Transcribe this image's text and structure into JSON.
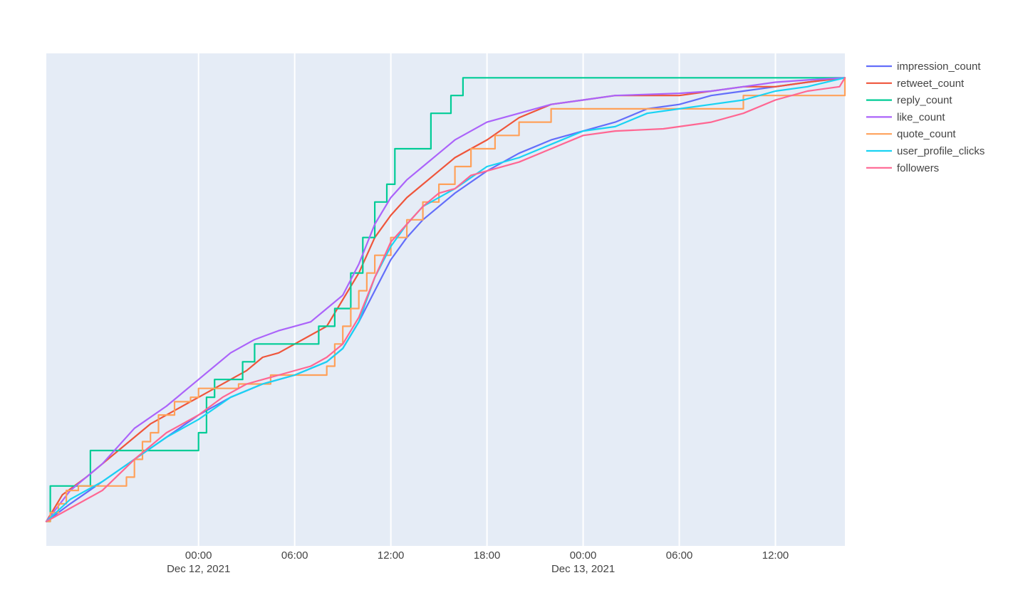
{
  "chart_data": {
    "type": "line",
    "title": "",
    "xlabel": "",
    "ylabel": "",
    "x_axis_type": "date",
    "xlim": [
      "2021-12-11 14:30",
      "2021-12-13 16:20"
    ],
    "ylim": [
      -0.055,
      1.055
    ],
    "grid": "vertical gridlines only",
    "plot_background": "#e5ecf6",
    "legend_position": "top-right",
    "x_ticks": [
      {
        "at": "2021-12-12 00:00",
        "time": "00:00",
        "date": "Dec 12, 2021"
      },
      {
        "at": "2021-12-12 06:00",
        "time": "06:00",
        "date": ""
      },
      {
        "at": "2021-12-12 12:00",
        "time": "12:00",
        "date": ""
      },
      {
        "at": "2021-12-12 18:00",
        "time": "18:00",
        "date": ""
      },
      {
        "at": "2021-12-13 00:00",
        "time": "00:00",
        "date": "Dec 13, 2021"
      },
      {
        "at": "2021-12-13 06:00",
        "time": "06:00",
        "date": ""
      },
      {
        "at": "2021-12-13 12:00",
        "time": "12:00",
        "date": ""
      }
    ],
    "series": [
      {
        "name": "impression_count",
        "color": "#636efa",
        "shape": "linear",
        "points": [
          [
            "2021-12-11 14:30",
            0
          ],
          [
            "2021-12-11 16:00",
            0.04
          ],
          [
            "2021-12-11 18:00",
            0.09
          ],
          [
            "2021-12-11 20:00",
            0.14
          ],
          [
            "2021-12-11 22:00",
            0.19
          ],
          [
            "2021-12-12 00:00",
            0.24
          ],
          [
            "2021-12-12 02:00",
            0.28
          ],
          [
            "2021-12-12 04:00",
            0.31
          ],
          [
            "2021-12-12 06:00",
            0.33
          ],
          [
            "2021-12-12 08:00",
            0.36
          ],
          [
            "2021-12-12 09:00",
            0.39
          ],
          [
            "2021-12-12 10:00",
            0.45
          ],
          [
            "2021-12-12 11:00",
            0.52
          ],
          [
            "2021-12-12 12:00",
            0.59
          ],
          [
            "2021-12-12 13:00",
            0.64
          ],
          [
            "2021-12-12 14:00",
            0.68
          ],
          [
            "2021-12-12 16:00",
            0.74
          ],
          [
            "2021-12-12 18:00",
            0.79
          ],
          [
            "2021-12-12 20:00",
            0.83
          ],
          [
            "2021-12-12 22:00",
            0.86
          ],
          [
            "2021-12-13 00:00",
            0.88
          ],
          [
            "2021-12-13 02:00",
            0.9
          ],
          [
            "2021-12-13 04:00",
            0.93
          ],
          [
            "2021-12-13 06:00",
            0.94
          ],
          [
            "2021-12-13 08:00",
            0.96
          ],
          [
            "2021-12-13 10:00",
            0.97
          ],
          [
            "2021-12-13 12:00",
            0.98
          ],
          [
            "2021-12-13 14:00",
            0.99
          ],
          [
            "2021-12-13 16:20",
            1
          ]
        ]
      },
      {
        "name": "retweet_count",
        "color": "#ef553b",
        "shape": "linear",
        "points": [
          [
            "2021-12-11 14:30",
            0
          ],
          [
            "2021-12-11 15:30",
            0.06
          ],
          [
            "2021-12-11 17:00",
            0.1
          ],
          [
            "2021-12-11 19:00",
            0.16
          ],
          [
            "2021-12-11 21:00",
            0.22
          ],
          [
            "2021-12-11 23:00",
            0.26
          ],
          [
            "2021-12-12 00:00",
            0.28
          ],
          [
            "2021-12-12 01:00",
            0.3
          ],
          [
            "2021-12-12 02:00",
            0.32
          ],
          [
            "2021-12-12 03:00",
            0.34
          ],
          [
            "2021-12-12 04:00",
            0.37
          ],
          [
            "2021-12-12 05:00",
            0.38
          ],
          [
            "2021-12-12 06:00",
            0.4
          ],
          [
            "2021-12-12 07:00",
            0.42
          ],
          [
            "2021-12-12 08:00",
            0.44
          ],
          [
            "2021-12-12 09:00",
            0.5
          ],
          [
            "2021-12-12 10:00",
            0.56
          ],
          [
            "2021-12-12 11:00",
            0.64
          ],
          [
            "2021-12-12 12:00",
            0.69
          ],
          [
            "2021-12-12 13:00",
            0.73
          ],
          [
            "2021-12-12 14:00",
            0.76
          ],
          [
            "2021-12-12 15:00",
            0.79
          ],
          [
            "2021-12-12 16:00",
            0.82
          ],
          [
            "2021-12-12 17:00",
            0.84
          ],
          [
            "2021-12-12 18:00",
            0.86
          ],
          [
            "2021-12-12 20:00",
            0.91
          ],
          [
            "2021-12-12 22:00",
            0.94
          ],
          [
            "2021-12-13 00:00",
            0.95
          ],
          [
            "2021-12-13 02:00",
            0.96
          ],
          [
            "2021-12-13 06:00",
            0.96
          ],
          [
            "2021-12-13 08:00",
            0.97
          ],
          [
            "2021-12-13 10:00",
            0.98
          ],
          [
            "2021-12-13 12:00",
            0.98
          ],
          [
            "2021-12-13 14:00",
            0.99
          ],
          [
            "2021-12-13 16:20",
            1
          ]
        ]
      },
      {
        "name": "reply_count",
        "color": "#00cc96",
        "shape": "step",
        "points": [
          [
            "2021-12-11 14:30",
            0
          ],
          [
            "2021-12-11 14:45",
            0.08
          ],
          [
            "2021-12-11 17:15",
            0.16
          ],
          [
            "2021-12-11 20:00",
            0.16
          ],
          [
            "2021-12-12 00:00",
            0.2
          ],
          [
            "2021-12-12 00:30",
            0.28
          ],
          [
            "2021-12-12 01:00",
            0.32
          ],
          [
            "2021-12-12 02:45",
            0.36
          ],
          [
            "2021-12-12 03:30",
            0.4
          ],
          [
            "2021-12-12 07:30",
            0.44
          ],
          [
            "2021-12-12 08:30",
            0.48
          ],
          [
            "2021-12-12 09:30",
            0.56
          ],
          [
            "2021-12-12 10:15",
            0.64
          ],
          [
            "2021-12-12 11:00",
            0.72
          ],
          [
            "2021-12-12 11:45",
            0.76
          ],
          [
            "2021-12-12 12:15",
            0.84
          ],
          [
            "2021-12-12 14:30",
            0.92
          ],
          [
            "2021-12-12 15:45",
            0.96
          ],
          [
            "2021-12-12 16:30",
            1
          ],
          [
            "2021-12-13 16:20",
            1
          ]
        ]
      },
      {
        "name": "like_count",
        "color": "#ab63fa",
        "shape": "linear",
        "points": [
          [
            "2021-12-11 14:30",
            0
          ],
          [
            "2021-12-11 16:00",
            0.07
          ],
          [
            "2021-12-11 18:00",
            0.13
          ],
          [
            "2021-12-11 20:00",
            0.21
          ],
          [
            "2021-12-11 22:00",
            0.26
          ],
          [
            "2021-12-12 00:00",
            0.32
          ],
          [
            "2021-12-12 02:00",
            0.38
          ],
          [
            "2021-12-12 03:30",
            0.41
          ],
          [
            "2021-12-12 05:00",
            0.43
          ],
          [
            "2021-12-12 06:00",
            0.44
          ],
          [
            "2021-12-12 07:00",
            0.45
          ],
          [
            "2021-12-12 08:00",
            0.48
          ],
          [
            "2021-12-12 09:00",
            0.51
          ],
          [
            "2021-12-12 10:00",
            0.58
          ],
          [
            "2021-12-12 11:00",
            0.67
          ],
          [
            "2021-12-12 12:00",
            0.73
          ],
          [
            "2021-12-12 13:00",
            0.77
          ],
          [
            "2021-12-12 14:00",
            0.8
          ],
          [
            "2021-12-12 15:00",
            0.83
          ],
          [
            "2021-12-12 16:00",
            0.86
          ],
          [
            "2021-12-12 17:00",
            0.88
          ],
          [
            "2021-12-12 18:00",
            0.9
          ],
          [
            "2021-12-12 20:00",
            0.92
          ],
          [
            "2021-12-12 22:00",
            0.94
          ],
          [
            "2021-12-13 00:00",
            0.95
          ],
          [
            "2021-12-13 02:00",
            0.96
          ],
          [
            "2021-12-13 06:00",
            0.965
          ],
          [
            "2021-12-13 08:00",
            0.97
          ],
          [
            "2021-12-13 10:00",
            0.98
          ],
          [
            "2021-12-13 12:00",
            0.99
          ],
          [
            "2021-12-13 14:00",
            0.995
          ],
          [
            "2021-12-13 16:20",
            1
          ]
        ]
      },
      {
        "name": "quote_count",
        "color": "#ffa15a",
        "shape": "step",
        "points": [
          [
            "2021-12-11 14:30",
            0
          ],
          [
            "2021-12-11 14:45",
            0.02
          ],
          [
            "2021-12-11 15:15",
            0.04
          ],
          [
            "2021-12-11 15:45",
            0.07
          ],
          [
            "2021-12-11 16:30",
            0.08
          ],
          [
            "2021-12-11 19:30",
            0.1
          ],
          [
            "2021-12-11 20:00",
            0.14
          ],
          [
            "2021-12-11 20:30",
            0.18
          ],
          [
            "2021-12-11 21:00",
            0.2
          ],
          [
            "2021-12-11 21:30",
            0.24
          ],
          [
            "2021-12-11 22:30",
            0.27
          ],
          [
            "2021-12-11 23:30",
            0.28
          ],
          [
            "2021-12-12 00:00",
            0.3
          ],
          [
            "2021-12-12 02:30",
            0.31
          ],
          [
            "2021-12-12 04:30",
            0.33
          ],
          [
            "2021-12-12 08:00",
            0.35
          ],
          [
            "2021-12-12 08:30",
            0.4
          ],
          [
            "2021-12-12 09:00",
            0.44
          ],
          [
            "2021-12-12 09:30",
            0.48
          ],
          [
            "2021-12-12 10:00",
            0.52
          ],
          [
            "2021-12-12 10:30",
            0.56
          ],
          [
            "2021-12-12 11:00",
            0.6
          ],
          [
            "2021-12-12 12:00",
            0.64
          ],
          [
            "2021-12-12 13:00",
            0.68
          ],
          [
            "2021-12-12 14:00",
            0.72
          ],
          [
            "2021-12-12 15:00",
            0.76
          ],
          [
            "2021-12-12 16:00",
            0.8
          ],
          [
            "2021-12-12 17:00",
            0.84
          ],
          [
            "2021-12-12 18:30",
            0.87
          ],
          [
            "2021-12-12 20:00",
            0.9
          ],
          [
            "2021-12-12 22:00",
            0.93
          ],
          [
            "2021-12-13 10:00",
            0.96
          ],
          [
            "2021-12-13 13:00",
            0.96
          ],
          [
            "2021-12-13 16:00",
            0.96
          ],
          [
            "2021-12-13 16:20",
            1
          ]
        ]
      },
      {
        "name": "user_profile_clicks",
        "color": "#19d3f3",
        "shape": "linear",
        "points": [
          [
            "2021-12-11 14:30",
            0
          ],
          [
            "2021-12-11 16:00",
            0.05
          ],
          [
            "2021-12-11 18:00",
            0.09
          ],
          [
            "2021-12-11 20:00",
            0.14
          ],
          [
            "2021-12-11 22:00",
            0.19
          ],
          [
            "2021-12-12 00:00",
            0.23
          ],
          [
            "2021-12-12 02:00",
            0.28
          ],
          [
            "2021-12-12 04:00",
            0.31
          ],
          [
            "2021-12-12 06:00",
            0.33
          ],
          [
            "2021-12-12 08:00",
            0.36
          ],
          [
            "2021-12-12 09:00",
            0.39
          ],
          [
            "2021-12-12 10:00",
            0.45
          ],
          [
            "2021-12-12 11:00",
            0.55
          ],
          [
            "2021-12-12 12:00",
            0.62
          ],
          [
            "2021-12-12 13:00",
            0.67
          ],
          [
            "2021-12-12 14:00",
            0.71
          ],
          [
            "2021-12-12 16:00",
            0.75
          ],
          [
            "2021-12-12 18:00",
            0.8
          ],
          [
            "2021-12-12 20:00",
            0.82
          ],
          [
            "2021-12-12 22:00",
            0.85
          ],
          [
            "2021-12-13 00:00",
            0.88
          ],
          [
            "2021-12-13 02:00",
            0.89
          ],
          [
            "2021-12-13 04:00",
            0.92
          ],
          [
            "2021-12-13 06:00",
            0.93
          ],
          [
            "2021-12-13 08:00",
            0.94
          ],
          [
            "2021-12-13 10:00",
            0.95
          ],
          [
            "2021-12-13 12:00",
            0.97
          ],
          [
            "2021-12-13 14:00",
            0.98
          ],
          [
            "2021-12-13 16:20",
            1
          ]
        ]
      },
      {
        "name": "followers",
        "color": "#ff6692",
        "shape": "linear",
        "points": [
          [
            "2021-12-11 14:30",
            0
          ],
          [
            "2021-12-11 16:00",
            0.03
          ],
          [
            "2021-12-11 18:00",
            0.07
          ],
          [
            "2021-12-11 20:00",
            0.14
          ],
          [
            "2021-12-11 22:00",
            0.2
          ],
          [
            "2021-12-12 00:00",
            0.24
          ],
          [
            "2021-12-12 01:30",
            0.28
          ],
          [
            "2021-12-12 03:00",
            0.31
          ],
          [
            "2021-12-12 05:00",
            0.33
          ],
          [
            "2021-12-12 07:00",
            0.35
          ],
          [
            "2021-12-12 08:00",
            0.37
          ],
          [
            "2021-12-12 09:00",
            0.4
          ],
          [
            "2021-12-12 10:00",
            0.46
          ],
          [
            "2021-12-12 11:00",
            0.55
          ],
          [
            "2021-12-12 12:00",
            0.63
          ],
          [
            "2021-12-12 13:00",
            0.67
          ],
          [
            "2021-12-12 14:00",
            0.71
          ],
          [
            "2021-12-12 15:00",
            0.74
          ],
          [
            "2021-12-12 16:00",
            0.75
          ],
          [
            "2021-12-12 17:00",
            0.78
          ],
          [
            "2021-12-12 18:00",
            0.79
          ],
          [
            "2021-12-12 20:00",
            0.81
          ],
          [
            "2021-12-12 22:00",
            0.84
          ],
          [
            "2021-12-13 00:00",
            0.87
          ],
          [
            "2021-12-13 02:00",
            0.88
          ],
          [
            "2021-12-13 05:00",
            0.885
          ],
          [
            "2021-12-13 08:00",
            0.9
          ],
          [
            "2021-12-13 10:00",
            0.92
          ],
          [
            "2021-12-13 12:00",
            0.95
          ],
          [
            "2021-12-13 14:00",
            0.97
          ],
          [
            "2021-12-13 16:00",
            0.98
          ],
          [
            "2021-12-13 16:20",
            1
          ]
        ]
      }
    ]
  }
}
